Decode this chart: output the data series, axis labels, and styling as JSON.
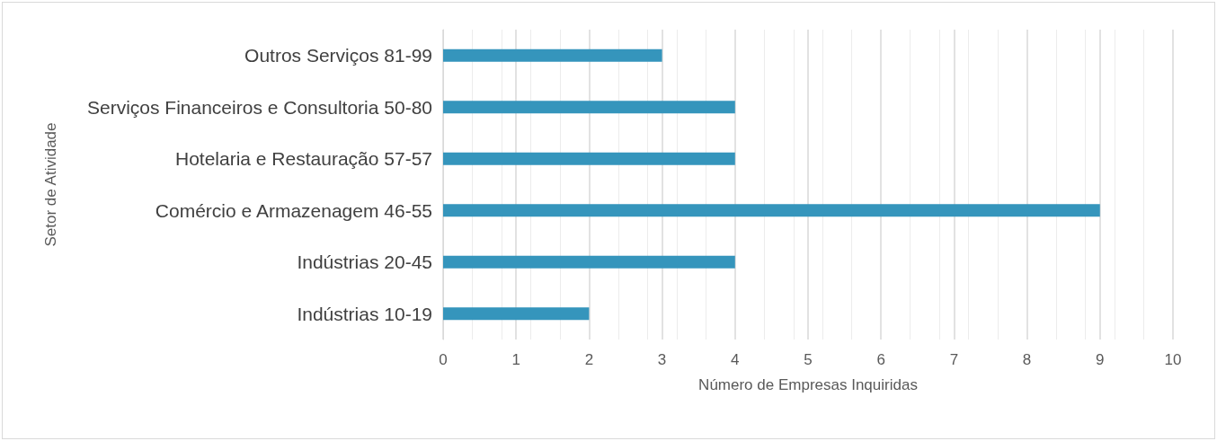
{
  "chart_data": {
    "type": "bar",
    "orientation": "horizontal",
    "categories": [
      "Outros Serviços 81-99",
      "Serviços Financeiros e Consultoria 50-80",
      "Hotelaria e Restauração 57-57",
      "Comércio e Armazenagem 46-55",
      "Indústrias 20-45",
      "Indústrias 10-19"
    ],
    "values": [
      3,
      4,
      4,
      9,
      4,
      2
    ],
    "color": "#3595bc",
    "xlabel": "Número de Empresas Inquiridas",
    "ylabel": "Setor de Atividade",
    "xlim": [
      0,
      10
    ],
    "xticks": [
      0,
      1,
      2,
      3,
      4,
      5,
      6,
      7,
      8,
      9,
      10
    ],
    "grid": "x"
  }
}
